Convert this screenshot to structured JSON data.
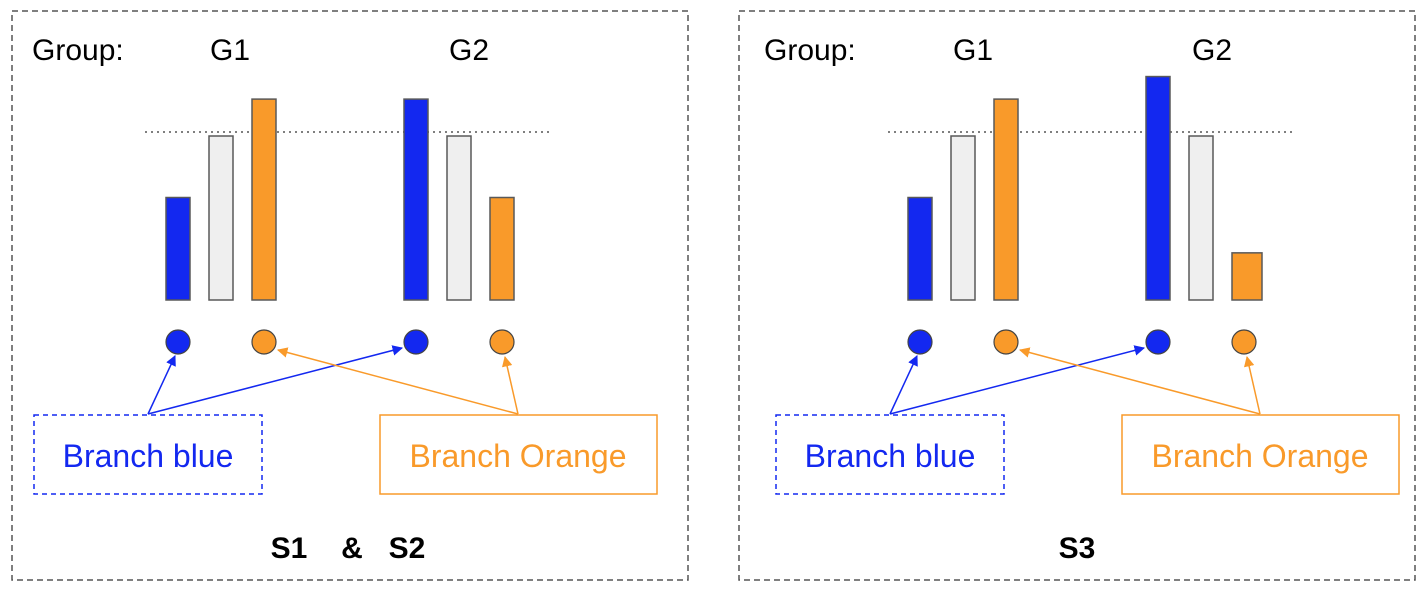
{
  "colors": {
    "blue": "#1328f0",
    "orange": "#f99a2a",
    "neutral_bar_fill": "#efefef",
    "bar_stroke": "#595959",
    "panel_border": "#555555",
    "baseline_dotted": "#555555"
  },
  "panels": [
    {
      "group_label": "Group:",
      "groups": [
        {
          "label": "G1",
          "bars": [
            {
              "color": "blue",
              "value": 0.5
            },
            {
              "color": "neutral",
              "value": 0.8
            },
            {
              "color": "orange",
              "value": 0.98
            }
          ]
        },
        {
          "label": "G2",
          "bars": [
            {
              "color": "blue",
              "value": 0.98
            },
            {
              "color": "neutral",
              "value": 0.8
            },
            {
              "color": "orange",
              "value": 0.5
            }
          ]
        }
      ],
      "branch_blue_label": "Branch blue",
      "branch_orange_label": "Branch Orange",
      "caption_parts": [
        "S1",
        "&",
        "S2"
      ]
    },
    {
      "group_label": "Group:",
      "groups": [
        {
          "label": "G1",
          "bars": [
            {
              "color": "blue",
              "value": 0.5
            },
            {
              "color": "neutral",
              "value": 0.8
            },
            {
              "color": "orange",
              "value": 0.98
            }
          ]
        },
        {
          "label": "G2",
          "bars": [
            {
              "color": "blue",
              "value": 1.09
            },
            {
              "color": "neutral",
              "value": 0.8
            },
            {
              "color": "orange",
              "value": 0.23
            }
          ]
        }
      ],
      "branch_blue_label": "Branch blue",
      "branch_orange_label": "Branch Orange",
      "caption_parts": [
        "S3"
      ]
    }
  ]
}
